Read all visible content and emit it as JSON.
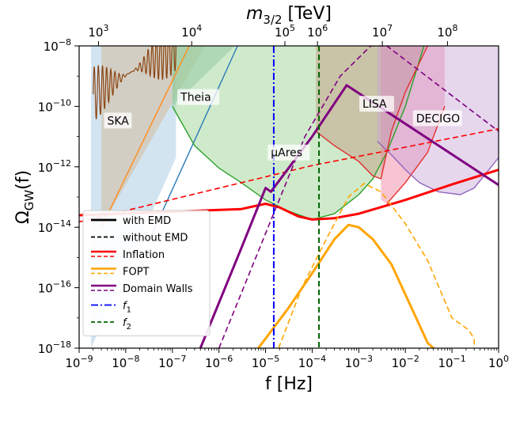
{
  "chart_data": {
    "type": "line",
    "xlabel": "f [Hz]",
    "ylabel": "Ω_GW(f)",
    "top_xlabel": "m_3/2 [TeV]",
    "xscale": "log",
    "yscale": "log",
    "xlim": [
      1e-09,
      1
    ],
    "ylim": [
      1e-18,
      1e-08
    ],
    "x_ticks": [
      {
        "value": 1e-09,
        "base": "10",
        "exp": "−9"
      },
      {
        "value": 1e-08,
        "base": "10",
        "exp": "−8"
      },
      {
        "value": 1e-07,
        "base": "10",
        "exp": "−7"
      },
      {
        "value": 1e-06,
        "base": "10",
        "exp": "−6"
      },
      {
        "value": 1e-05,
        "base": "10",
        "exp": "−5"
      },
      {
        "value": 0.0001,
        "base": "10",
        "exp": "−4"
      },
      {
        "value": 0.001,
        "base": "10",
        "exp": "−3"
      },
      {
        "value": 0.01,
        "base": "10",
        "exp": "−2"
      },
      {
        "value": 0.1,
        "base": "10",
        "exp": "−1"
      },
      {
        "value": 1,
        "base": "10",
        "exp": "0"
      }
    ],
    "y_ticks": [
      {
        "value": 1e-18,
        "base": "10",
        "exp": "−18"
      },
      {
        "value": 1e-16,
        "base": "10",
        "exp": "−16"
      },
      {
        "value": 1e-14,
        "base": "10",
        "exp": "−14"
      },
      {
        "value": 1e-12,
        "base": "10",
        "exp": "−12"
      },
      {
        "value": 1e-10,
        "base": "10",
        "exp": "−10"
      },
      {
        "value": 1e-08,
        "base": "10",
        "exp": "−8"
      }
    ],
    "top_ticks": [
      {
        "f": 2.6e-09,
        "base": "10",
        "exp": "3"
      },
      {
        "f": 2.6e-07,
        "base": "10",
        "exp": "4"
      },
      {
        "f": 2.6e-05,
        "base": "10",
        "exp": "5"
      },
      {
        "f": 0.00013,
        "base": "10",
        "exp": "6"
      },
      {
        "f": 0.0032,
        "base": "10",
        "exp": "7"
      },
      {
        "f": 0.08,
        "base": "10",
        "exp": "8"
      }
    ],
    "regions": [
      {
        "label": "SKA",
        "color": "#aecde6",
        "alpha": 0.55,
        "label_at": [
          4e-09,
          2.5e-11
        ],
        "points": [
          [
            1.8e-09,
            1e-08
          ],
          [
            1.2e-07,
            1e-08
          ],
          [
            1.2e-07,
            2e-12
          ],
          [
            1.8e-09,
            1e-18
          ]
        ]
      },
      {
        "label": "",
        "color": "#d2b48c",
        "alpha": 0.45,
        "label_at": null,
        "points": [
          [
            3e-09,
            1e-08
          ],
          [
            2e-07,
            1e-08
          ],
          [
            5e-07,
            1e-08
          ],
          [
            3e-09,
            1e-14
          ]
        ]
      },
      {
        "label": "Theia",
        "color": "#5aa89a",
        "alpha": 0.45,
        "label_at": [
          1.5e-07,
          1.5e-10
        ],
        "points": [
          [
            1e-07,
            1e-08
          ],
          [
            2.2e-06,
            1e-08
          ],
          [
            1e-07,
            1e-10
          ]
        ]
      },
      {
        "label": "µAres",
        "color": "#a8d8a0",
        "alpha": 0.55,
        "label_at": [
          1.3e-05,
          2.2e-12
        ],
        "points": [
          [
            1e-07,
            1e-10
          ],
          [
            3e-07,
            5e-12
          ],
          [
            1e-06,
            9e-13
          ],
          [
            3e-06,
            3e-13
          ],
          [
            1e-05,
            8e-14
          ],
          [
            3e-05,
            3.5e-14
          ],
          [
            0.0001,
            1.8e-14
          ],
          [
            0.0003,
            2.8e-14
          ],
          [
            0.001,
            1.2e-13
          ],
          [
            0.002,
            4e-13
          ],
          [
            0.004,
            3e-12
          ],
          [
            0.01,
            1e-10
          ],
          [
            0.025,
            1e-08
          ],
          [
            1e-07,
            1e-08
          ]
        ]
      },
      {
        "label": "LISA",
        "color": "#c4a28a",
        "alpha": 0.55,
        "label_at": [
          0.0012,
          9e-11
        ],
        "points": [
          [
            0.00012,
            1e-08
          ],
          [
            0.03,
            1e-08
          ],
          [
            0.01,
            3e-10
          ],
          [
            0.005,
            1.5e-11
          ],
          [
            0.003,
            4e-13
          ],
          [
            0.002,
            5e-13
          ],
          [
            0.001,
            1.5e-12
          ],
          [
            0.0003,
            5e-12
          ],
          [
            0.00012,
            1.5e-11
          ]
        ]
      },
      {
        "label": "",
        "color": "#f07c98",
        "alpha": 0.45,
        "label_at": null,
        "points": [
          [
            0.003,
            1e-08
          ],
          [
            0.07,
            1e-08
          ],
          [
            0.07,
            1e-10
          ],
          [
            0.03,
            3e-12
          ],
          [
            0.01,
            3e-13
          ],
          [
            0.004,
            6e-14
          ],
          [
            0.003,
            8e-14
          ]
        ]
      },
      {
        "label": "DECIGO",
        "color": "#c8a6d8",
        "alpha": 0.45,
        "label_at": [
          0.017,
          3e-11
        ],
        "points": [
          [
            0.0025,
            1e-08
          ],
          [
            1,
            1e-08
          ],
          [
            1,
            2e-12
          ],
          [
            0.3,
            2e-13
          ],
          [
            0.15,
            1.2e-13
          ],
          [
            0.05,
            1.5e-13
          ],
          [
            0.02,
            3e-13
          ],
          [
            0.01,
            8e-13
          ],
          [
            0.005,
            2.5e-12
          ],
          [
            0.0025,
            7e-12
          ]
        ]
      }
    ],
    "boundary_lines": [
      {
        "color": "#ff8c1a",
        "points": [
          [
            3e-09,
            1e-14
          ],
          [
            2.3e-07,
            1e-08
          ]
        ]
      },
      {
        "color": "#2a7ab8",
        "points": [
          [
            3e-08,
            3e-15
          ],
          [
            2.5e-06,
            1e-08
          ]
        ]
      },
      {
        "color": "#2ca02c",
        "points": [
          [
            1e-07,
            1e-10
          ],
          [
            3e-07,
            5e-12
          ],
          [
            1e-06,
            9e-13
          ],
          [
            3e-06,
            3e-13
          ],
          [
            1e-05,
            8e-14
          ],
          [
            3e-05,
            3.5e-14
          ],
          [
            0.0001,
            1.8e-14
          ],
          [
            0.0003,
            2.8e-14
          ],
          [
            0.001,
            1.2e-13
          ],
          [
            0.002,
            4e-13
          ],
          [
            0.004,
            3e-12
          ],
          [
            0.01,
            1e-10
          ],
          [
            0.025,
            1e-08
          ]
        ]
      },
      {
        "color": "#e03030",
        "points": [
          [
            0.00012,
            1.5e-11
          ],
          [
            0.0003,
            5e-12
          ],
          [
            0.001,
            1.5e-12
          ],
          [
            0.002,
            5e-13
          ],
          [
            0.003,
            4e-13
          ],
          [
            0.005,
            1.5e-11
          ],
          [
            0.01,
            3e-10
          ],
          [
            0.03,
            1e-08
          ]
        ]
      },
      {
        "color": "#e83030",
        "points": [
          [
            0.004,
            6e-14
          ],
          [
            0.01,
            3e-13
          ],
          [
            0.03,
            3e-12
          ],
          [
            0.07,
            1e-10
          ]
        ]
      },
      {
        "color": "#9467bd",
        "points": [
          [
            0.0025,
            7e-12
          ],
          [
            0.005,
            2.5e-12
          ],
          [
            0.01,
            8e-13
          ],
          [
            0.02,
            3e-13
          ],
          [
            0.05,
            1.5e-13
          ],
          [
            0.15,
            1.2e-13
          ],
          [
            0.3,
            2e-13
          ],
          [
            1,
            2e-12
          ]
        ]
      }
    ],
    "ska_oscillation": {
      "color": "#8b4513",
      "x_start": 2e-09,
      "x_end": 1.2e-07,
      "cycles": 20
    },
    "series": [
      {
        "name": "with EMD",
        "color": "#000000",
        "dash": "solid",
        "width": 2.5,
        "points": []
      },
      {
        "name": "without EMD",
        "color": "#000000",
        "dash": "dashed",
        "width": 1.6,
        "points": []
      },
      {
        "name": "Inflation",
        "color": "#ff0000",
        "dash": "solid",
        "width": 3.0,
        "points": [
          [
            1e-09,
            2.5e-14
          ],
          [
            3e-06,
            4e-14
          ],
          [
            1e-05,
            6e-14
          ],
          [
            2e-05,
            4.5e-14
          ],
          [
            5e-05,
            2.3e-14
          ],
          [
            0.0001,
            1.8e-14
          ],
          [
            0.0003,
            2e-14
          ],
          [
            0.001,
            2.8e-14
          ],
          [
            0.01,
            8e-14
          ],
          [
            0.1,
            2.6e-13
          ],
          [
            1,
            8e-13
          ]
        ]
      },
      {
        "name": "Inflation (without EMD)",
        "color": "#ff0000",
        "dash": "dashed",
        "width": 1.6,
        "points": [
          [
            1e-09,
            1.5e-14
          ],
          [
            0.0001,
            1.1e-12
          ],
          [
            1,
            1.8e-11
          ]
        ]
      },
      {
        "name": "FOPT",
        "color": "#ffa500",
        "dash": "solid",
        "width": 3.0,
        "points": [
          [
            7e-06,
            1e-18
          ],
          [
            3e-05,
            2e-17
          ],
          [
            0.0001,
            3e-16
          ],
          [
            0.0003,
            4e-15
          ],
          [
            0.0006,
            1.2e-14
          ],
          [
            0.001,
            1e-14
          ],
          [
            0.002,
            4e-15
          ],
          [
            0.005,
            6e-16
          ],
          [
            0.01,
            6e-17
          ],
          [
            0.03,
            1.5e-18
          ],
          [
            0.04,
            1e-18
          ]
        ]
      },
      {
        "name": "FOPT (without EMD)",
        "color": "#ffa500",
        "dash": "dashed",
        "width": 1.6,
        "points": [
          [
            1.9e-05,
            1e-18
          ],
          [
            6e-05,
            1e-16
          ],
          [
            0.0002,
            4e-15
          ],
          [
            0.0006,
            1e-13
          ],
          [
            0.0013,
            2.8e-13
          ],
          [
            0.003,
            1.5e-13
          ],
          [
            0.01,
            1.3e-14
          ],
          [
            0.03,
            8e-16
          ],
          [
            0.1,
            1e-17
          ],
          [
            0.23,
            4e-18
          ],
          [
            0.3,
            2e-18
          ],
          [
            0.3,
            1e-18
          ]
        ]
      },
      {
        "name": "Domain Walls",
        "color": "#800080",
        "dash": "solid",
        "width": 3.0,
        "points": [
          [
            4e-07,
            1e-18
          ],
          [
            3e-06,
            2e-15
          ],
          [
            1e-05,
            2e-13
          ],
          [
            1.3e-05,
            1.5e-13
          ],
          [
            0.0001,
            1e-11
          ],
          [
            0.00055,
            5e-10
          ],
          [
            1,
            2.5e-13
          ]
        ]
      },
      {
        "name": "Domain Walls (without EMD)",
        "color": "#800080",
        "dash": "dashed",
        "width": 1.6,
        "points": [
          [
            1e-06,
            1e-18
          ],
          [
            7e-05,
            1e-11
          ],
          [
            0.0004,
            1e-09
          ],
          [
            0.0018,
            1e-08
          ],
          [
            0.004,
            1e-08
          ],
          [
            1,
            1.5e-11
          ]
        ]
      },
      {
        "name": "f_1",
        "color": "#0000ff",
        "dash": "dashdot",
        "width": 2.0,
        "vline": 1.5e-05
      },
      {
        "name": "f_2",
        "color": "#006400",
        "dash": "dashed",
        "width": 2.0,
        "vline": 0.00014
      }
    ],
    "legend": {
      "placement": "lower-left",
      "entries": [
        {
          "label": "with EMD",
          "sub": "",
          "color": "#000000",
          "dash": "solid"
        },
        {
          "label": "without EMD",
          "sub": "",
          "color": "#000000",
          "dash": "dashed"
        },
        {
          "label": "Inflation",
          "sub": "",
          "color": "#ff0000",
          "dash": "pair"
        },
        {
          "label": "FOPT",
          "sub": "",
          "color": "#ffa500",
          "dash": "pair"
        },
        {
          "label": "Domain Walls",
          "sub": "",
          "color": "#800080",
          "dash": "pair"
        },
        {
          "label": "f",
          "sub": "1",
          "color": "#0000ff",
          "dash": "dashdot"
        },
        {
          "label": "f",
          "sub": "2",
          "color": "#006400",
          "dash": "dashed"
        }
      ]
    }
  }
}
